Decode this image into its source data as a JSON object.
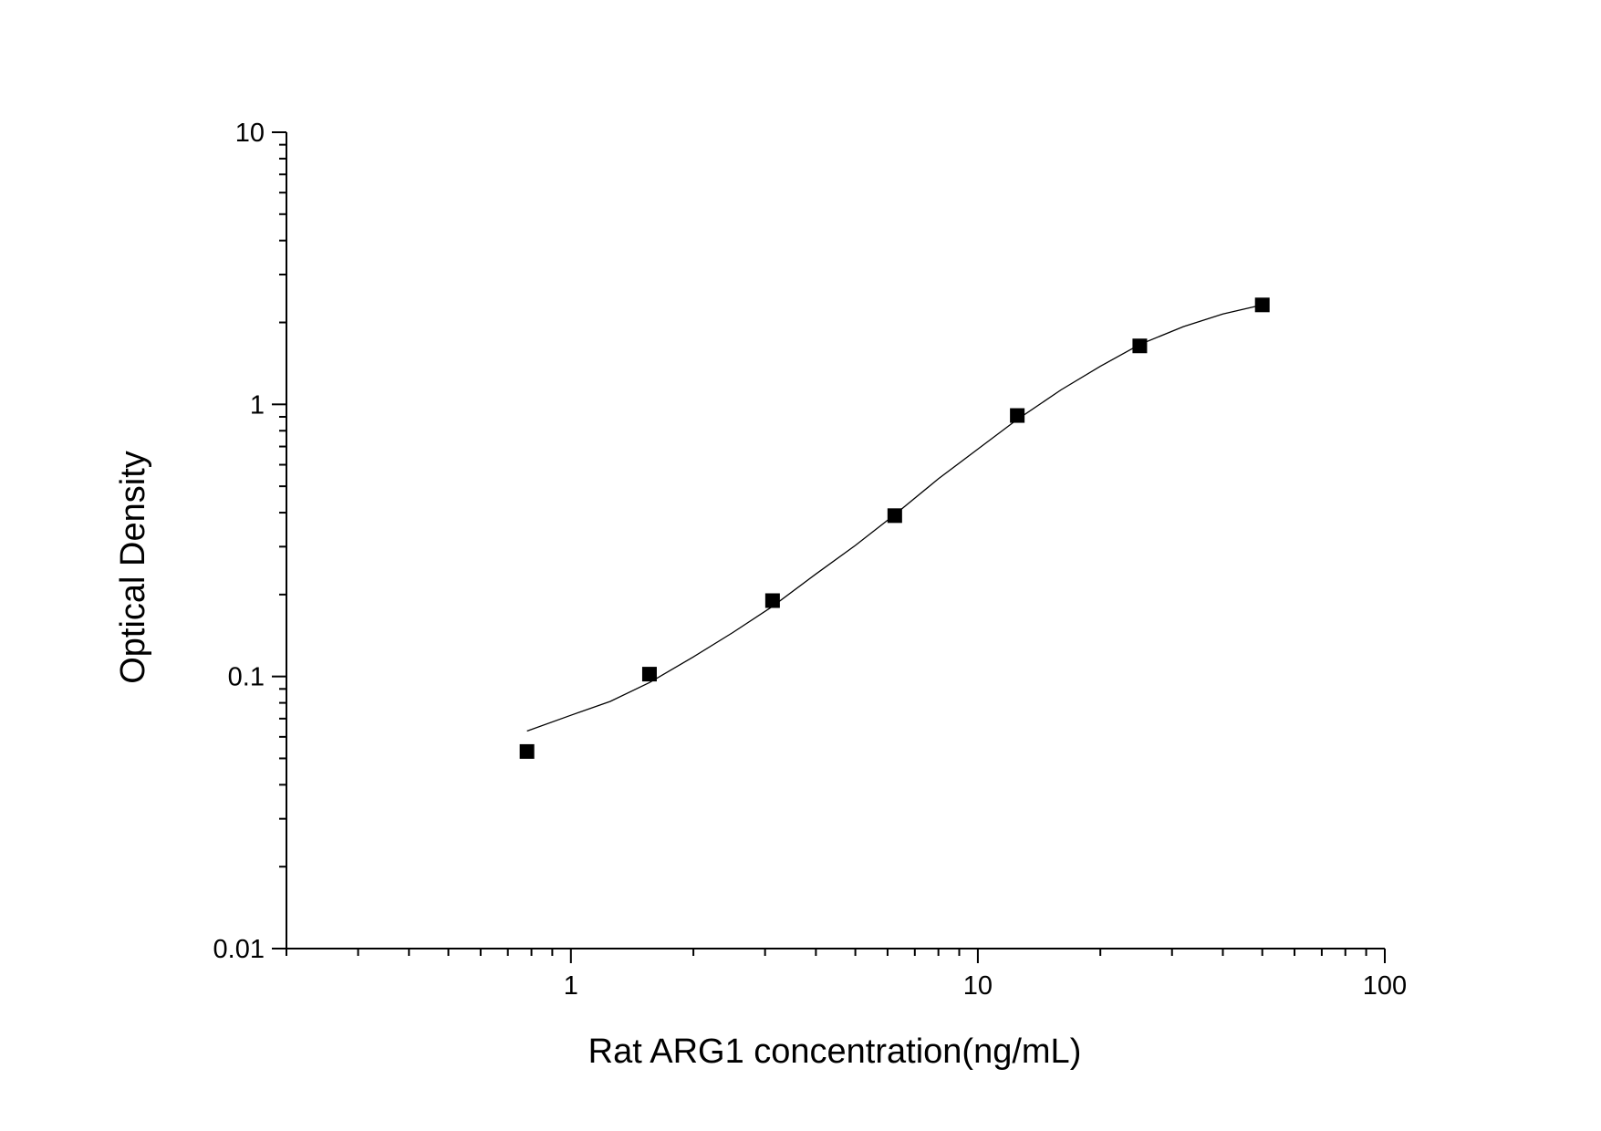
{
  "chart_data": {
    "type": "scatter",
    "xlabel": "Rat ARG1 concentration(ng/mL)",
    "ylabel": "Optical Density",
    "x_scale": "log",
    "y_scale": "log",
    "xlim": [
      0.2,
      100
    ],
    "ylim": [
      0.01,
      10
    ],
    "x_ticks": [
      {
        "value": 1,
        "label": "1"
      },
      {
        "value": 10,
        "label": "10"
      },
      {
        "value": 100,
        "label": "100"
      }
    ],
    "y_ticks": [
      {
        "value": 0.01,
        "label": "0.01"
      },
      {
        "value": 0.1,
        "label": "0.1"
      },
      {
        "value": 1,
        "label": "1"
      },
      {
        "value": 10,
        "label": "10"
      }
    ],
    "grid": false,
    "legend": "none",
    "marker_color": "#000000",
    "series": [
      {
        "marker": "square",
        "x": [
          0.78,
          1.56,
          3.13,
          6.25,
          12.5,
          25,
          50
        ],
        "y": [
          0.053,
          0.102,
          0.19,
          0.39,
          0.91,
          1.64,
          2.32
        ]
      }
    ],
    "fit_curve": {
      "x": [
        0.78,
        1.0,
        1.25,
        1.56,
        2.0,
        2.5,
        3.13,
        4.0,
        5.0,
        6.25,
        8.0,
        10.0,
        12.5,
        16.0,
        20.0,
        25.0,
        32.0,
        40.0,
        50.0
      ],
      "y": [
        0.063,
        0.072,
        0.081,
        0.095,
        0.118,
        0.145,
        0.181,
        0.238,
        0.303,
        0.393,
        0.533,
        0.685,
        0.88,
        1.13,
        1.38,
        1.66,
        1.93,
        2.15,
        2.32
      ]
    }
  }
}
